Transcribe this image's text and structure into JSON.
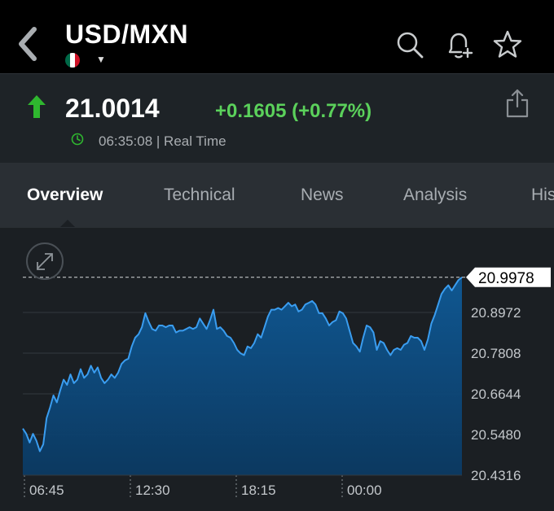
{
  "header": {
    "title": "USD/MXN",
    "flag_colors": [
      "#006847",
      "#ffffff",
      "#ce1126"
    ],
    "icons": [
      "back-chevron",
      "search-icon",
      "add-alert-bell-icon",
      "star-icon"
    ]
  },
  "quote": {
    "price": "21.0014",
    "change": "+0.1605 (+0.77%)",
    "timestamp": "06:35:08 | Real Time",
    "up_color": "#2fb72f",
    "change_color": "#5bd15b"
  },
  "tabs": [
    {
      "label": "Overview",
      "active": true
    },
    {
      "label": "Technical",
      "active": false
    },
    {
      "label": "News",
      "active": false
    },
    {
      "label": "Analysis",
      "active": false
    },
    {
      "label": "His",
      "active": false
    }
  ],
  "chart_data": {
    "type": "area",
    "series": [
      {
        "values": [
          20.565,
          20.55,
          20.525,
          20.55,
          20.53,
          20.5,
          20.52,
          20.595,
          20.625,
          20.66,
          20.64,
          20.675,
          20.705,
          20.69,
          20.72,
          20.695,
          20.705,
          20.735,
          20.71,
          20.72,
          20.745,
          20.725,
          20.74,
          20.71,
          20.695,
          20.705,
          20.72,
          20.71,
          20.725,
          20.75,
          20.76,
          20.765,
          20.8,
          20.825,
          20.835,
          20.855,
          20.895,
          20.87,
          20.85,
          20.845,
          20.86,
          20.86,
          20.855,
          20.86,
          20.86,
          20.84,
          20.845,
          20.845,
          20.85,
          20.855,
          20.85,
          20.855,
          20.88,
          20.865,
          20.85,
          20.875,
          20.905,
          20.85,
          20.855,
          20.845,
          20.83,
          20.825,
          20.81,
          20.79,
          20.78,
          20.775,
          20.8,
          20.795,
          20.81,
          20.835,
          20.825,
          20.855,
          20.885,
          20.905,
          20.905,
          20.91,
          20.905,
          20.915,
          20.925,
          20.915,
          20.92,
          20.9,
          20.905,
          20.92,
          20.925,
          20.93,
          20.92,
          20.895,
          20.895,
          20.88,
          20.86,
          20.87,
          20.875,
          20.9,
          20.895,
          20.88,
          20.845,
          20.81,
          20.8,
          20.785,
          20.825,
          20.86,
          20.855,
          20.84,
          20.79,
          20.815,
          20.81,
          20.79,
          20.775,
          20.79,
          20.795,
          20.79,
          20.805,
          20.81,
          20.83,
          20.825,
          20.825,
          20.815,
          20.79,
          20.82,
          20.865,
          20.89,
          20.92,
          20.95,
          20.965,
          20.975,
          20.96,
          20.975,
          20.99,
          20.9978
        ]
      }
    ],
    "x_ticks": [
      "06:45",
      "12:30",
      "18:15",
      "00:00"
    ],
    "y_ticks": [
      20.4316,
      20.548,
      20.6644,
      20.7808,
      20.8972
    ],
    "ylim": [
      20.4316,
      21.0136
    ],
    "last_value_label": "20.9978",
    "line_color": "#3a9df0",
    "fill_top_color": "#0f5a97",
    "fill_bottom_color": "#0b3a63",
    "grid": true
  }
}
